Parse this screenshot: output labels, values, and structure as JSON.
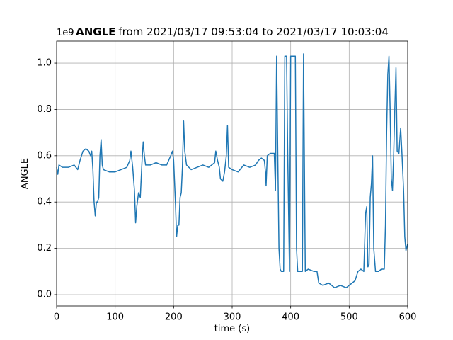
{
  "chart_data": {
    "type": "line",
    "title_bold": "ANGLE",
    "title": "from 2021/03/17 09:53:04 to 2021/03/17 10:03:04",
    "x_label": "time (s)",
    "y_label": "ANGLE",
    "y_offset_label": "1e9",
    "xlim": [
      0,
      600
    ],
    "ylim": [
      -0.049,
      1.095
    ],
    "xticks": [
      0,
      100,
      200,
      300,
      400,
      500,
      600
    ],
    "yticks": [
      {
        "value": 0,
        "label": "0.0"
      },
      0.2,
      0.4,
      0.6,
      0.8,
      {
        "value": 1,
        "label": "1.0"
      }
    ],
    "grid": true,
    "x": [
      0,
      2,
      4,
      10,
      20,
      30,
      36,
      40,
      45,
      50,
      55,
      58,
      60,
      62,
      64,
      66,
      68,
      70,
      72,
      74,
      76,
      78,
      80,
      90,
      100,
      110,
      120,
      125,
      127,
      130,
      133,
      135,
      137,
      140,
      143,
      146,
      148,
      150,
      152,
      160,
      170,
      180,
      188,
      195,
      198,
      200,
      203,
      205,
      207,
      209,
      211,
      213,
      215,
      217,
      219,
      222,
      230,
      240,
      250,
      260,
      270,
      272,
      275,
      278,
      280,
      284,
      287,
      290,
      292,
      294,
      300,
      310,
      320,
      330,
      340,
      345,
      350,
      355,
      357,
      358,
      360,
      365,
      372,
      374,
      376,
      378,
      380,
      382,
      384,
      388,
      390,
      393,
      395,
      398,
      400,
      404,
      408,
      410,
      412,
      420,
      422,
      424,
      425,
      430,
      440,
      445,
      448,
      455,
      465,
      475,
      485,
      495,
      505,
      510,
      515,
      520,
      525,
      528,
      530,
      532,
      534,
      536,
      538,
      540,
      542,
      545,
      550,
      555,
      560,
      562,
      564,
      566,
      568,
      570,
      572,
      574,
      576,
      578,
      580,
      582,
      585,
      588,
      590,
      593,
      595,
      597,
      600
    ],
    "series": [
      {
        "name": "ANGLE",
        "color": "#1f77b4",
        "values": [
          0.55,
          0.52,
          0.56,
          0.55,
          0.55,
          0.56,
          0.54,
          0.58,
          0.62,
          0.63,
          0.62,
          0.6,
          0.62,
          0.54,
          0.4,
          0.34,
          0.4,
          0.4,
          0.42,
          0.6,
          0.67,
          0.56,
          0.54,
          0.53,
          0.53,
          0.54,
          0.55,
          0.58,
          0.62,
          0.55,
          0.45,
          0.31,
          0.38,
          0.44,
          0.42,
          0.58,
          0.66,
          0.6,
          0.56,
          0.56,
          0.57,
          0.56,
          0.56,
          0.6,
          0.62,
          0.58,
          0.4,
          0.25,
          0.3,
          0.3,
          0.42,
          0.44,
          0.55,
          0.75,
          0.62,
          0.56,
          0.54,
          0.55,
          0.56,
          0.55,
          0.57,
          0.62,
          0.58,
          0.55,
          0.5,
          0.49,
          0.53,
          0.6,
          0.73,
          0.55,
          0.54,
          0.53,
          0.56,
          0.55,
          0.56,
          0.58,
          0.59,
          0.58,
          0.53,
          0.47,
          0.6,
          0.61,
          0.61,
          0.45,
          1.03,
          0.6,
          0.2,
          0.11,
          0.1,
          0.1,
          1.03,
          1.03,
          0.6,
          0.1,
          1.03,
          1.03,
          1.03,
          0.2,
          0.1,
          0.1,
          1.04,
          0.4,
          0.1,
          0.11,
          0.1,
          0.1,
          0.05,
          0.04,
          0.05,
          0.03,
          0.04,
          0.03,
          0.05,
          0.06,
          0.1,
          0.11,
          0.1,
          0.35,
          0.38,
          0.12,
          0.13,
          0.42,
          0.48,
          0.6,
          0.2,
          0.1,
          0.1,
          0.11,
          0.11,
          0.3,
          0.7,
          0.95,
          1.03,
          0.8,
          0.5,
          0.45,
          0.6,
          0.8,
          0.98,
          0.62,
          0.61,
          0.72,
          0.62,
          0.45,
          0.25,
          0.19,
          0.22
        ]
      }
    ]
  }
}
